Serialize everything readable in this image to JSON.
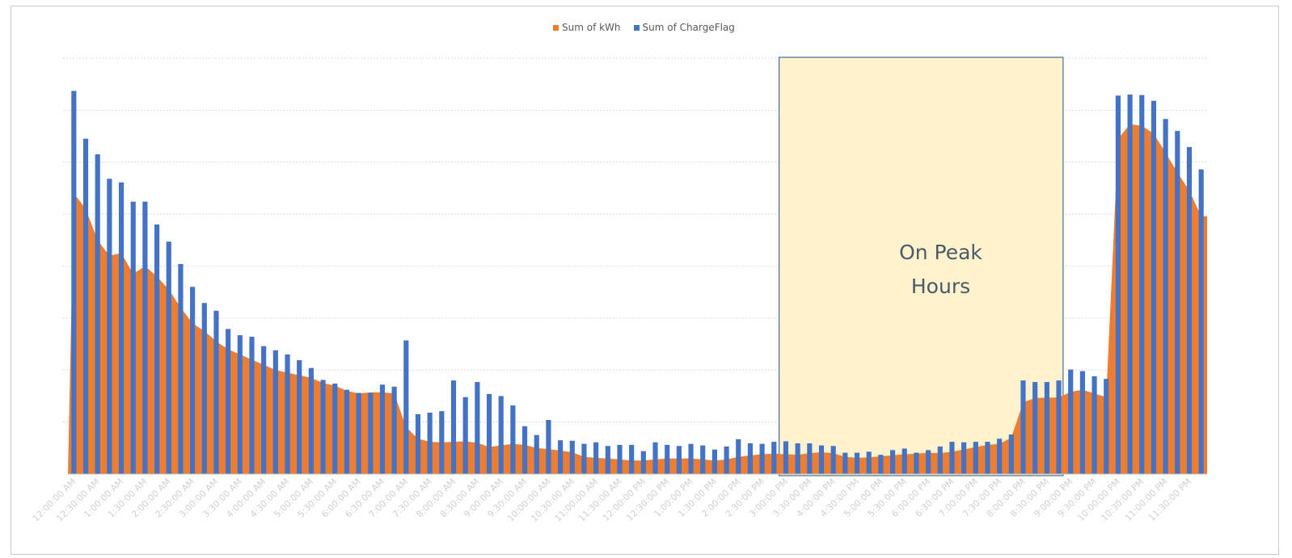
{
  "colors": {
    "kwh": "#ED7D31",
    "charge": "#4472C4",
    "peak_fill": "#FFF2CC",
    "peak_border": "#41719C",
    "grid": "#d9d9d9",
    "tick": "#bfbfbf"
  },
  "legend": [
    {
      "label": "Sum of kWh",
      "color": "#ED7D31"
    },
    {
      "label": "Sum of ChargeFlag",
      "color": "#4472C4"
    }
  ],
  "annotation": {
    "line1": "On Peak",
    "line2": "Hours",
    "start_time": "3:00:00 PM",
    "end_time": "8:45:00 PM"
  },
  "chart_data": {
    "type": "bar",
    "combo": "clustered column (Sum of ChargeFlag) over filled area (Sum of kWh)",
    "grid": "horizontal dotted",
    "legend_position": "top",
    "y_axis_labels_shown": false,
    "ylim": [
      0,
      8
    ],
    "tick_labels": [
      "12:00:00 AM",
      "12:30:00 AM",
      "1:00:00 AM",
      "1:30:00 AM",
      "2:00:00 AM",
      "2:30:00 AM",
      "3:00:00 AM",
      "3:30:00 AM",
      "4:00:00 AM",
      "4:30:00 AM",
      "5:00:00 AM",
      "5:30:00 AM",
      "6:00:00 AM",
      "6:30:00 AM",
      "7:00:00 AM",
      "7:30:00 AM",
      "8:00:00 AM",
      "8:30:00 AM",
      "9:00:00 AM",
      "9:30:00 AM",
      "10:00:00 AM",
      "10:30:00 AM",
      "11:00:00 AM",
      "11:30:00 AM",
      "12:00:00 PM",
      "12:30:00 PM",
      "1:00:00 PM",
      "1:30:00 PM",
      "2:00:00 PM",
      "2:30:00 PM",
      "3:00:00 PM",
      "3:30:00 PM",
      "4:00:00 PM",
      "4:30:00 PM",
      "5:00:00 PM",
      "5:30:00 PM",
      "6:00:00 PM",
      "6:30:00 PM",
      "7:00:00 PM",
      "7:30:00 PM",
      "8:00:00 PM",
      "8:30:00 PM",
      "9:00:00 PM",
      "9:30:00 PM",
      "10:00:00 PM",
      "10:30:00 PM",
      "11:00:00 PM",
      "11:30:00 PM"
    ],
    "series": [
      {
        "name": "Sum of ChargeFlag",
        "type": "bar",
        "values": [
          7.37,
          6.45,
          6.15,
          5.68,
          5.61,
          5.24,
          5.24,
          4.8,
          4.47,
          4.04,
          3.6,
          3.29,
          3.14,
          2.79,
          2.67,
          2.64,
          2.46,
          2.38,
          2.3,
          2.19,
          2.04,
          1.81,
          1.74,
          1.62,
          1.56,
          1.56,
          1.72,
          1.68,
          2.57,
          1.15,
          1.18,
          1.21,
          1.8,
          1.48,
          1.77,
          1.54,
          1.5,
          1.32,
          0.92,
          0.75,
          1.04,
          0.65,
          0.64,
          0.58,
          0.61,
          0.54,
          0.56,
          0.56,
          0.44,
          0.61,
          0.56,
          0.54,
          0.58,
          0.55,
          0.47,
          0.53,
          0.67,
          0.59,
          0.58,
          0.62,
          0.63,
          0.59,
          0.59,
          0.55,
          0.54,
          0.41,
          0.41,
          0.43,
          0.37,
          0.46,
          0.49,
          0.41,
          0.46,
          0.53,
          0.62,
          0.61,
          0.62,
          0.62,
          0.68,
          0.76,
          1.8,
          1.77,
          1.77,
          1.8,
          2.01,
          1.98,
          1.88,
          1.83,
          7.28,
          7.3,
          7.29,
          7.18,
          6.83,
          6.6,
          6.29,
          5.86
        ]
      },
      {
        "name": "Sum of kWh",
        "type": "area",
        "values": [
          5.4,
          5.1,
          4.5,
          4.2,
          4.25,
          3.85,
          4.0,
          3.8,
          3.55,
          3.2,
          2.9,
          2.75,
          2.55,
          2.4,
          2.3,
          2.2,
          2.1,
          2.0,
          1.95,
          1.9,
          1.85,
          1.75,
          1.7,
          1.6,
          1.55,
          1.57,
          1.57,
          1.55,
          0.9,
          0.68,
          0.62,
          0.61,
          0.62,
          0.63,
          0.6,
          0.52,
          0.55,
          0.58,
          0.56,
          0.5,
          0.48,
          0.45,
          0.42,
          0.33,
          0.31,
          0.3,
          0.28,
          0.26,
          0.26,
          0.28,
          0.3,
          0.3,
          0.3,
          0.28,
          0.26,
          0.28,
          0.33,
          0.36,
          0.38,
          0.39,
          0.38,
          0.37,
          0.4,
          0.42,
          0.4,
          0.33,
          0.31,
          0.32,
          0.34,
          0.36,
          0.38,
          0.39,
          0.41,
          0.4,
          0.43,
          0.47,
          0.52,
          0.56,
          0.58,
          0.7,
          1.38,
          1.46,
          1.47,
          1.47,
          1.58,
          1.62,
          1.55,
          1.48,
          6.45,
          6.73,
          6.7,
          6.55,
          6.18,
          5.8,
          5.45,
          4.96
        ]
      }
    ]
  }
}
